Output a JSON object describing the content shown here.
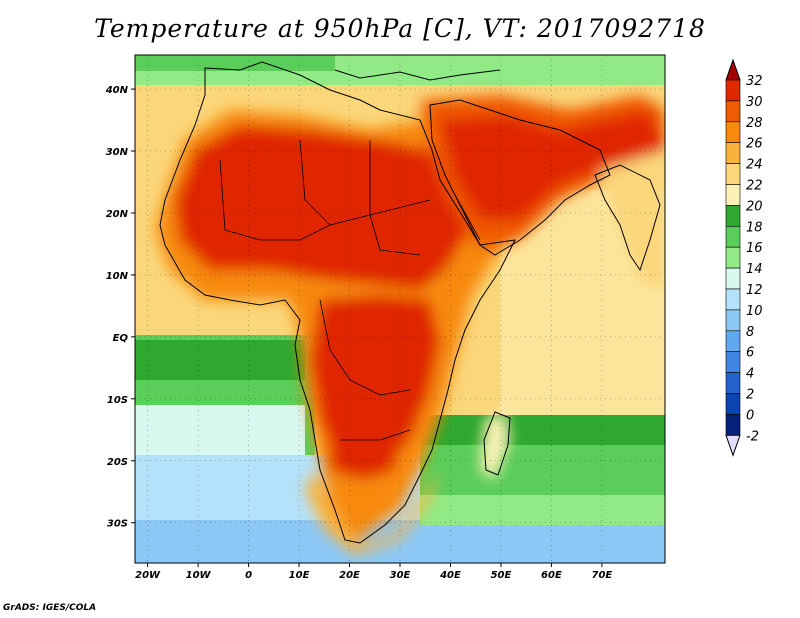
{
  "title": "Temperature at 950hPa [C], VT: 2017092718",
  "credit": "GrADS: IGES/COLA",
  "map": {
    "lon_labels": [
      "20W",
      "10W",
      "0",
      "10E",
      "20E",
      "30E",
      "40E",
      "50E",
      "60E",
      "70E"
    ],
    "lat_labels": [
      "40N",
      "30N",
      "20N",
      "10N",
      "EQ",
      "10S",
      "20S",
      "30S"
    ]
  },
  "colorbar": {
    "labels": [
      "32",
      "30",
      "28",
      "26",
      "24",
      "22",
      "20",
      "18",
      "16",
      "14",
      "12",
      "10",
      "8",
      "6",
      "4",
      "2",
      "0",
      "-2"
    ],
    "colors": [
      "#a50000",
      "#e02800",
      "#f05a00",
      "#f78a0a",
      "#f9b23c",
      "#fbd67a",
      "#fdf2b6",
      "#2ea82e",
      "#5acd5a",
      "#92ea86",
      "#d8f8f0",
      "#b4e2fa",
      "#8cc8f6",
      "#62a8ee",
      "#3f87e2",
      "#2264cc",
      "#0a44b0",
      "#04227a",
      "#e2dcff"
    ]
  }
}
